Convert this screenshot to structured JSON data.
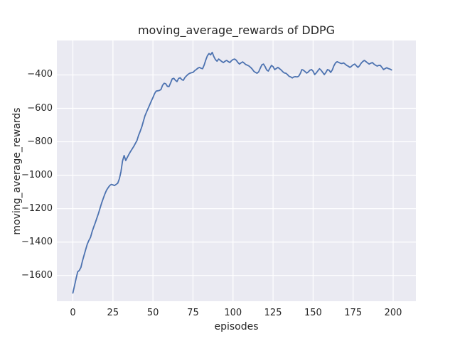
{
  "chart": {
    "title": "moving_average_rewards of DDPG",
    "xlabel": "episodes",
    "ylabel": "moving_average_rewards"
  },
  "chart_data": {
    "type": "line",
    "title": "moving_average_rewards of DDPG",
    "xlabel": "episodes",
    "ylabel": "moving_average_rewards",
    "x_ticks": [
      0,
      25,
      50,
      75,
      100,
      125,
      150,
      175,
      200
    ],
    "y_ticks": [
      -400,
      -600,
      -800,
      -1000,
      -1200,
      -1400,
      -1600
    ],
    "xlim": [
      -10,
      214.2
    ],
    "ylim": [
      -1754,
      -194
    ],
    "grid": true,
    "legend": false,
    "line_color": "#4c72b0",
    "grid_color": "#ffffff",
    "plot_background": "#eaeaf2",
    "figure_background": "#ffffff",
    "series": [
      {
        "name": "moving_average_rewards",
        "x_start": 0,
        "x_step": 1,
        "values": [
          -1705,
          -1662,
          -1618,
          -1578,
          -1570,
          -1552,
          -1512,
          -1478,
          -1445,
          -1412,
          -1390,
          -1372,
          -1338,
          -1310,
          -1284,
          -1256,
          -1228,
          -1196,
          -1165,
          -1138,
          -1112,
          -1090,
          -1075,
          -1062,
          -1055,
          -1058,
          -1062,
          -1055,
          -1048,
          -1022,
          -980,
          -915,
          -882,
          -912,
          -893,
          -875,
          -858,
          -843,
          -828,
          -810,
          -793,
          -762,
          -738,
          -712,
          -678,
          -645,
          -622,
          -600,
          -578,
          -556,
          -535,
          -512,
          -497,
          -495,
          -493,
          -487,
          -462,
          -450,
          -453,
          -468,
          -470,
          -448,
          -424,
          -420,
          -432,
          -440,
          -421,
          -417,
          -428,
          -432,
          -415,
          -405,
          -396,
          -390,
          -387,
          -385,
          -375,
          -368,
          -360,
          -355,
          -360,
          -363,
          -340,
          -310,
          -285,
          -272,
          -280,
          -265,
          -290,
          -308,
          -318,
          -305,
          -312,
          -320,
          -326,
          -318,
          -313,
          -320,
          -326,
          -315,
          -308,
          -305,
          -312,
          -325,
          -335,
          -328,
          -322,
          -330,
          -338,
          -342,
          -347,
          -355,
          -365,
          -378,
          -385,
          -390,
          -382,
          -360,
          -340,
          -335,
          -350,
          -370,
          -377,
          -360,
          -343,
          -350,
          -368,
          -362,
          -355,
          -362,
          -370,
          -380,
          -388,
          -390,
          -398,
          -408,
          -412,
          -418,
          -412,
          -410,
          -412,
          -408,
          -392,
          -368,
          -372,
          -380,
          -389,
          -382,
          -372,
          -368,
          -378,
          -398,
          -388,
          -375,
          -363,
          -372,
          -385,
          -398,
          -385,
          -368,
          -372,
          -385,
          -370,
          -345,
          -328,
          -321,
          -325,
          -330,
          -332,
          -328,
          -335,
          -343,
          -348,
          -355,
          -348,
          -340,
          -335,
          -345,
          -355,
          -345,
          -330,
          -320,
          -313,
          -320,
          -328,
          -335,
          -330,
          -326,
          -335,
          -342,
          -347,
          -343,
          -343,
          -355,
          -368,
          -362,
          -357,
          -362,
          -365,
          -370
        ]
      }
    ]
  }
}
